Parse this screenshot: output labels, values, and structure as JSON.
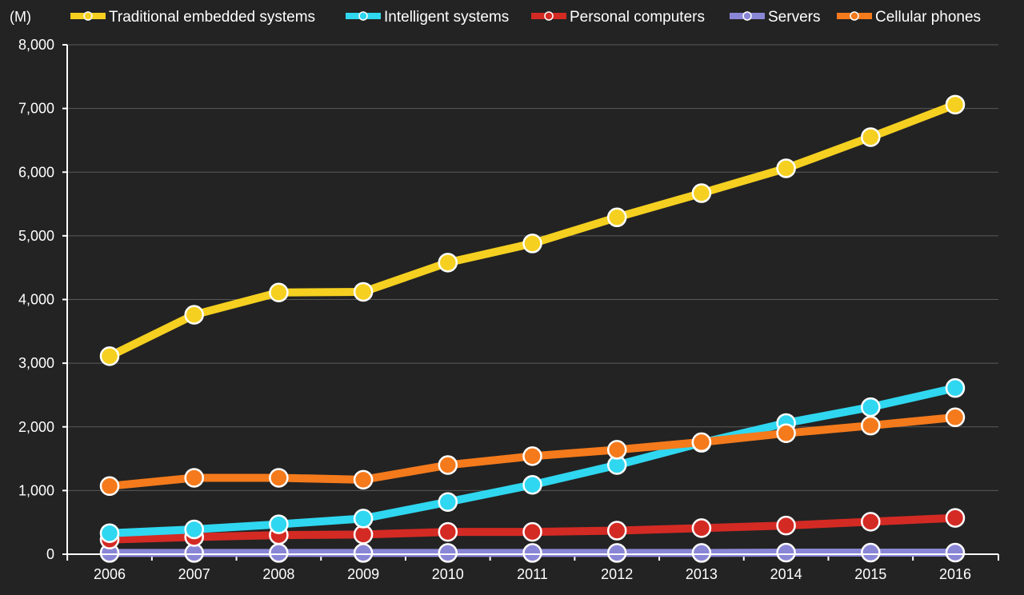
{
  "chart_data": {
    "type": "line",
    "unit_label": "(M)",
    "title": "",
    "xlabel": "",
    "ylabel": "",
    "x": [
      "2006",
      "2007",
      "2008",
      "2009",
      "2010",
      "2011",
      "2012",
      "2013",
      "2014",
      "2015",
      "2016"
    ],
    "ylim": [
      0,
      8000
    ],
    "yticks": [
      0,
      1000,
      2000,
      3000,
      4000,
      5000,
      6000,
      7000,
      8000
    ],
    "ytick_labels": [
      "0",
      "1,000",
      "2,000",
      "3,000",
      "4,000",
      "5,000",
      "6,000",
      "7,000",
      "8,000"
    ],
    "grid": true,
    "legend_position": "top",
    "series": [
      {
        "name": "Traditional embedded systems",
        "color": "#f5d020",
        "values": [
          3110,
          3760,
          4110,
          4120,
          4580,
          4880,
          5290,
          5670,
          6060,
          6550,
          7060
        ]
      },
      {
        "name": "Intelligent systems",
        "color": "#2fd7f0",
        "values": [
          330,
          390,
          470,
          560,
          820,
          1090,
          1400,
          1750,
          2060,
          2310,
          2610
        ]
      },
      {
        "name": "Personal computers",
        "color": "#d42a24",
        "values": [
          230,
          270,
          300,
          310,
          350,
          350,
          370,
          410,
          450,
          510,
          570
        ]
      },
      {
        "name": "Servers",
        "color": "#8a86d6",
        "values": [
          20,
          20,
          20,
          20,
          20,
          20,
          20,
          20,
          25,
          25,
          25
        ]
      },
      {
        "name": "Cellular phones",
        "color": "#f47a1c",
        "values": [
          1070,
          1200,
          1200,
          1170,
          1400,
          1540,
          1640,
          1760,
          1900,
          2020,
          2150
        ]
      }
    ]
  }
}
